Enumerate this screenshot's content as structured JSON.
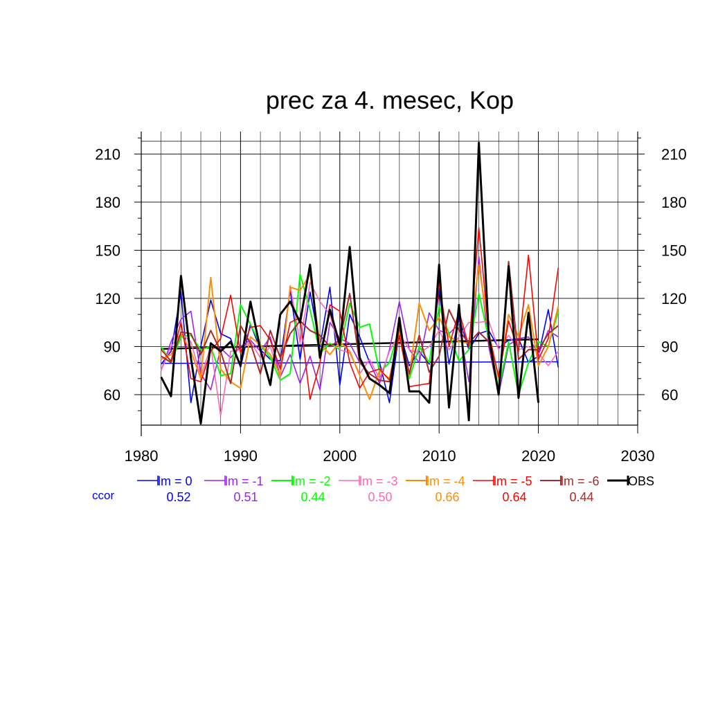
{
  "chart_data": {
    "type": "line",
    "title": "prec za 4. mesec, Kop",
    "xlabel": "",
    "ylabel": "",
    "xlim": [
      1980,
      2030
    ],
    "ylim": [
      41,
      224
    ],
    "xticks": [
      1980,
      1990,
      2000,
      2010,
      2020,
      2030
    ],
    "yticks": [
      60,
      90,
      120,
      150,
      180,
      210
    ],
    "grid": true,
    "legend_position": "bottom",
    "x": [
      1982,
      1983,
      1984,
      1985,
      1986,
      1987,
      1988,
      1989,
      1990,
      1991,
      1992,
      1993,
      1994,
      1995,
      1996,
      1997,
      1998,
      1999,
      2000,
      2001,
      2002,
      2003,
      2004,
      2005,
      2006,
      2007,
      2008,
      2009,
      2010,
      2011,
      2012,
      2013,
      2014,
      2015,
      2016,
      2017,
      2018,
      2019,
      2020,
      2021,
      2022
    ],
    "series": [
      {
        "name": "lm = 0",
        "color": "#0000ff",
        "ccor": "0.52",
        "width": 1.6,
        "values": [
          79,
          87,
          124,
          55,
          90,
          119,
          98,
          95,
          77,
          104,
          88,
          82,
          81,
          125,
          82,
          124,
          90,
          127,
          66,
          110,
          96,
          80,
          80,
          55,
          100,
          78,
          87,
          79,
          125,
          79,
          108,
          88,
          98,
          100,
          89,
          94,
          95,
          80,
          84,
          113,
          77
        ]
      },
      {
        "name": "lm = -1",
        "color": "#a020f0",
        "ccor": "0.51",
        "width": 1.6,
        "values": [
          75,
          93,
          107,
          112,
          73,
          63,
          89,
          83,
          90,
          94,
          87,
          96,
          71,
          85,
          67,
          84,
          63,
          105,
          95,
          92,
          80,
          80,
          67,
          88,
          118,
          88,
          80,
          111,
          100,
          98,
          104,
          68,
          146,
          90,
          60,
          91,
          95,
          96,
          85,
          100,
          96
        ]
      },
      {
        "name": "lm = -2",
        "color": "#00ff00",
        "ccor": "0.44",
        "width": 2,
        "values": [
          90,
          80,
          96,
          97,
          88,
          90,
          72,
          73,
          116,
          104,
          91,
          83,
          69,
          73,
          135,
          113,
          86,
          92,
          88,
          117,
          102,
          104,
          74,
          80,
          101,
          70,
          90,
          80,
          115,
          98,
          81,
          88,
          123,
          95,
          64,
          93,
          60,
          80,
          93,
          90,
          112
        ]
      },
      {
        "name": "lm = -3",
        "color": "#ff69b4",
        "ccor": "0.50",
        "width": 1.6,
        "values": [
          75,
          90,
          98,
          93,
          71,
          90,
          47,
          87,
          88,
          93,
          83,
          90,
          70,
          128,
          92,
          130,
          118,
          110,
          88,
          86,
          73,
          82,
          70,
          87,
          98,
          88,
          86,
          90,
          100,
          88,
          96,
          105,
          105,
          106,
          88,
          97,
          88,
          90,
          86,
          78,
          87
        ]
      },
      {
        "name": "lm = -4",
        "color": "#ff8c00",
        "ccor": "0.66",
        "width": 2,
        "values": [
          82,
          85,
          98,
          87,
          70,
          133,
          76,
          68,
          64,
          96,
          91,
          85,
          72,
          127,
          125,
          135,
          92,
          85,
          93,
          87,
          72,
          57,
          75,
          70,
          99,
          72,
          117,
          100,
          108,
          96,
          93,
          92,
          141,
          99,
          70,
          110,
          96,
          116,
          78,
          90,
          115
        ]
      },
      {
        "name": "lm = -5",
        "color": "#ff0000",
        "ccor": "0.64",
        "width": 1.6,
        "values": [
          88,
          81,
          105,
          70,
          68,
          87,
          95,
          122,
          86,
          102,
          103,
          94,
          76,
          105,
          108,
          57,
          80,
          116,
          112,
          80,
          64,
          74,
          76,
          69,
          97,
          65,
          66,
          67,
          129,
          90,
          112,
          90,
          164,
          98,
          71,
          106,
          87,
          147,
          82,
          95,
          139
        ]
      },
      {
        "name": "lm = -6",
        "color": "#a52a2a",
        "ccor": "0.44",
        "width": 2,
        "values": [
          84,
          80,
          99,
          98,
          85,
          100,
          87,
          67,
          103,
          92,
          73,
          100,
          83,
          98,
          106,
          100,
          97,
          90,
          94,
          123,
          80,
          73,
          69,
          68,
          102,
          73,
          97,
          74,
          84,
          113,
          100,
          92,
          99,
          93,
          61,
          143,
          82,
          88,
          88,
          98,
          103
        ]
      },
      {
        "name": "OBS",
        "color": "#000000",
        "ccor": "",
        "width": 3,
        "values": [
          71,
          59,
          134,
          83,
          42,
          92,
          87,
          93,
          78,
          118,
          88,
          66,
          110,
          118,
          105,
          141,
          83,
          113,
          91,
          152,
          83,
          70,
          66,
          61,
          108,
          62,
          62,
          55,
          141,
          52,
          116,
          44,
          217,
          97,
          60,
          140,
          58,
          111,
          55,
          null,
          null
        ]
      }
    ],
    "trend_lines": [
      {
        "name": "OBS",
        "color": "#000000",
        "x": [
          1982,
          2020
        ],
        "values": [
          88.5,
          94.5
        ]
      },
      {
        "name": "lm = 0",
        "color": "#0000ff",
        "x": [
          1982,
          2022
        ],
        "values": [
          79.5,
          80.5
        ]
      }
    ]
  },
  "ccor_label": "ccor"
}
